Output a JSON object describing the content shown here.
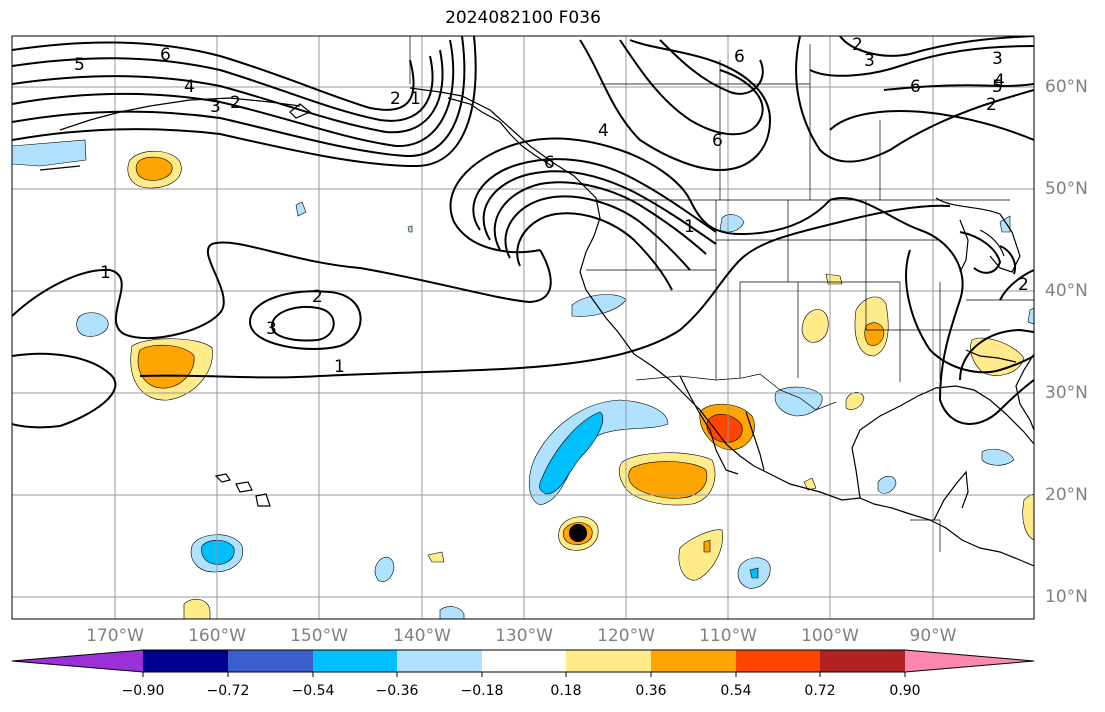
{
  "title": "2024082100 F036",
  "latitude_labels": [
    "60°N",
    "50°N",
    "40°N",
    "30°N",
    "20°N",
    "10°N"
  ],
  "longitude_labels": [
    "170°W",
    "160°W",
    "150°W",
    "140°W",
    "130°W",
    "120°W",
    "110°W",
    "100°W",
    "90°W"
  ],
  "colorbar": {
    "tick_labels": [
      "−0.90",
      "−0.72",
      "−0.54",
      "−0.36",
      "−0.18",
      "0.18",
      "0.36",
      "0.54",
      "0.72",
      "0.90"
    ],
    "colors": [
      "#9b30d9",
      "#000090",
      "#3a5fcd",
      "#00bfff",
      "#b0e2ff",
      "#ffffff",
      "#ffeb8a",
      "#ffa500",
      "#ff4500",
      "#b22222",
      "#ff88b0"
    ]
  },
  "contour_labels": [
    "5",
    "6",
    "4",
    "3",
    "2",
    "1",
    "2",
    "3",
    "6",
    "5",
    "1",
    "2",
    "3",
    "1",
    "4",
    "6",
    "2",
    "3",
    "6",
    "4",
    "2",
    "6",
    "1",
    "2"
  ],
  "storm_marker": "tropical-cyclone-marker"
}
